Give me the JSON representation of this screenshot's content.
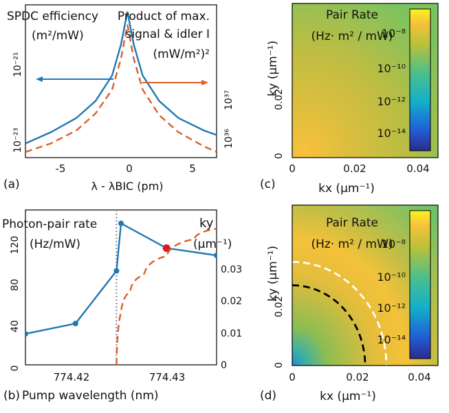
{
  "chart_data": [
    {
      "panel": "(a)",
      "type": "line",
      "left_label_lines": [
        "SPDC efficiency",
        "(m²/mW)"
      ],
      "right_label_lines": [
        "Product of max.",
        "signal & idler I",
        "(mW/m²)²"
      ],
      "x_axis_label": "λ - λBIC (pm)",
      "x_ticks": [
        "-5",
        "0",
        "5"
      ],
      "y_left_ticks": [
        "10⁻²³",
        "10⁻²¹"
      ],
      "y_right_ticks": [
        "10³⁶",
        "10³⁷"
      ],
      "xlim": [
        -8,
        7
      ],
      "ylim_log10_left": [
        -23.2,
        -20.5
      ],
      "y_scale": "log",
      "series": [
        {
          "color": "#1f77b4",
          "style": "solid",
          "axis": "left",
          "x": [
            -8,
            -6,
            -4,
            -2.5,
            -1.2,
            -0.5,
            0,
            0.5,
            1.2,
            2.5,
            4,
            6,
            7
          ],
          "log10_y": [
            -22.95,
            -22.75,
            -22.5,
            -22.2,
            -21.75,
            -21.2,
            -20.62,
            -21.2,
            -21.75,
            -22.2,
            -22.5,
            -22.72,
            -22.8
          ]
        },
        {
          "color": "#d95f2b",
          "style": "dashed",
          "axis": "right",
          "x": [
            -8,
            -6,
            -4,
            -2.5,
            -1.2,
            -0.5,
            0,
            0.5,
            1.2,
            2.5,
            4,
            6,
            7
          ],
          "log10_y": [
            -23.1,
            -22.95,
            -22.72,
            -22.42,
            -22.0,
            -21.45,
            -20.85,
            -21.45,
            -22.0,
            -22.45,
            -22.75,
            -23.0,
            -23.1
          ]
        }
      ]
    },
    {
      "panel": "(b)",
      "type": "line",
      "left_label_lines": [
        "Photon-pair rate",
        "(Hz/mW)"
      ],
      "right_label_lines": [
        "ky",
        "(μm⁻¹)"
      ],
      "x_axis_label": "Pump wavelength (nm)",
      "x_ticks": [
        "774.42",
        "774.43"
      ],
      "y_left_ticks": [
        "0",
        "40",
        "80",
        "120"
      ],
      "y_right_ticks": [
        "0",
        "0.01",
        "0.02",
        "0.03"
      ],
      "xlim": [
        774.4145,
        774.4355
      ],
      "ylim_left": [
        0,
        150
      ],
      "ylim_right": [
        0,
        0.037
      ],
      "vline_x": 774.4245,
      "series": [
        {
          "color": "#1f77b4",
          "style": "solid-markers",
          "axis": "left",
          "x": [
            774.4145,
            774.42,
            774.4245,
            774.425,
            774.43,
            774.4355
          ],
          "y": [
            30,
            40,
            91,
            137,
            113,
            106
          ],
          "highlight_index": 4
        },
        {
          "color": "#d95f2b",
          "style": "dashed",
          "axis": "right",
          "x": [
            774.4245,
            774.425,
            774.426,
            774.4275,
            774.43,
            774.433,
            774.4355
          ],
          "y": [
            0,
            0.0125,
            0.0175,
            0.0215,
            0.026,
            0.03,
            0.0325
          ]
        }
      ]
    },
    {
      "panel": "(c)",
      "type": "heatmap",
      "title_lines": [
        "Pair Rate",
        "(Hz· m² / mW)"
      ],
      "x_axis_label": "kx (μm⁻¹)",
      "y_axis_label": "ky (μm⁻¹)",
      "x_ticks": [
        "0",
        "0.02",
        "0.04"
      ],
      "y_ticks": [
        "0",
        "0.02"
      ],
      "xlim": [
        0,
        0.048
      ],
      "ylim": [
        0,
        0.048
      ],
      "colorbar_ticks": [
        "10⁻⁸",
        "10⁻¹⁰",
        "10⁻¹²",
        "10⁻¹⁴"
      ]
    },
    {
      "panel": "(d)",
      "type": "heatmap",
      "title_lines": [
        "Pair Rate",
        "(Hz· m² / mW)"
      ],
      "x_axis_label": "kx (μm⁻¹)",
      "y_axis_label": "ky (μm⁻¹)",
      "x_ticks": [
        "0",
        "0.02",
        "0.04"
      ],
      "y_ticks": [
        "0",
        "0.02"
      ],
      "xlim": [
        0,
        0.048
      ],
      "ylim": [
        0,
        0.048
      ],
      "colorbar_ticks": [
        "10⁻⁸",
        "10⁻¹⁰",
        "10⁻¹²",
        "10⁻¹⁴"
      ],
      "contours": [
        {
          "color": "#ffffff",
          "radius": 0.031,
          "style": "dashed"
        },
        {
          "color": "#000000",
          "radius": 0.024,
          "style": "dashed"
        }
      ]
    }
  ]
}
